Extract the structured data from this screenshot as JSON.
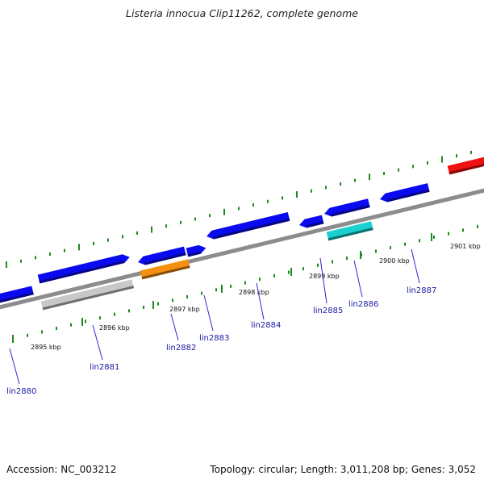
{
  "title": "Listeria innocua Clip11262, complete genome",
  "footer": {
    "accession": "Accession: NC_003212",
    "summary": "Topology: circular; Length: 3,011,208 bp; Genes: 3,052"
  },
  "colors": {
    "backbone": "#8c8c8c",
    "tick": "#1e8a1e",
    "label_line": "#2a2ad0",
    "gene_blue": "#0a0af0",
    "gene_grey": "#c8c8c8",
    "gene_orange": "#f59010",
    "gene_cyan": "#1ad0d0",
    "gene_red": "#f01010"
  },
  "ticks": [
    {
      "label": "2895 kbp"
    },
    {
      "label": "2896 kbp"
    },
    {
      "label": "2897 kbp"
    },
    {
      "label": "2898 kbp"
    },
    {
      "label": "2899 kbp"
    },
    {
      "label": "2900 kbp"
    },
    {
      "label": "2901 kbp"
    }
  ],
  "genes": [
    {
      "name": "lin2880",
      "color": "blue",
      "strand": "reverse"
    },
    {
      "name": "lin2881",
      "color": "blue",
      "strand": "forward"
    },
    {
      "name": "",
      "color": "grey",
      "strand": "box"
    },
    {
      "name": "lin2882",
      "color": "orange",
      "strand": "box"
    },
    {
      "name": "",
      "color": "blue",
      "strand": "reverse"
    },
    {
      "name": "lin2883",
      "color": "blue",
      "strand": "forward"
    },
    {
      "name": "lin2884",
      "color": "blue",
      "strand": "reverse"
    },
    {
      "name": "lin2885",
      "color": "blue",
      "strand": "reverse"
    },
    {
      "name": "",
      "color": "blue",
      "strand": "reverse"
    },
    {
      "name": "lin2886",
      "color": "cyan",
      "strand": "box"
    },
    {
      "name": "lin2887",
      "color": "blue",
      "strand": "reverse"
    },
    {
      "name": "",
      "color": "red",
      "strand": "box"
    }
  ]
}
